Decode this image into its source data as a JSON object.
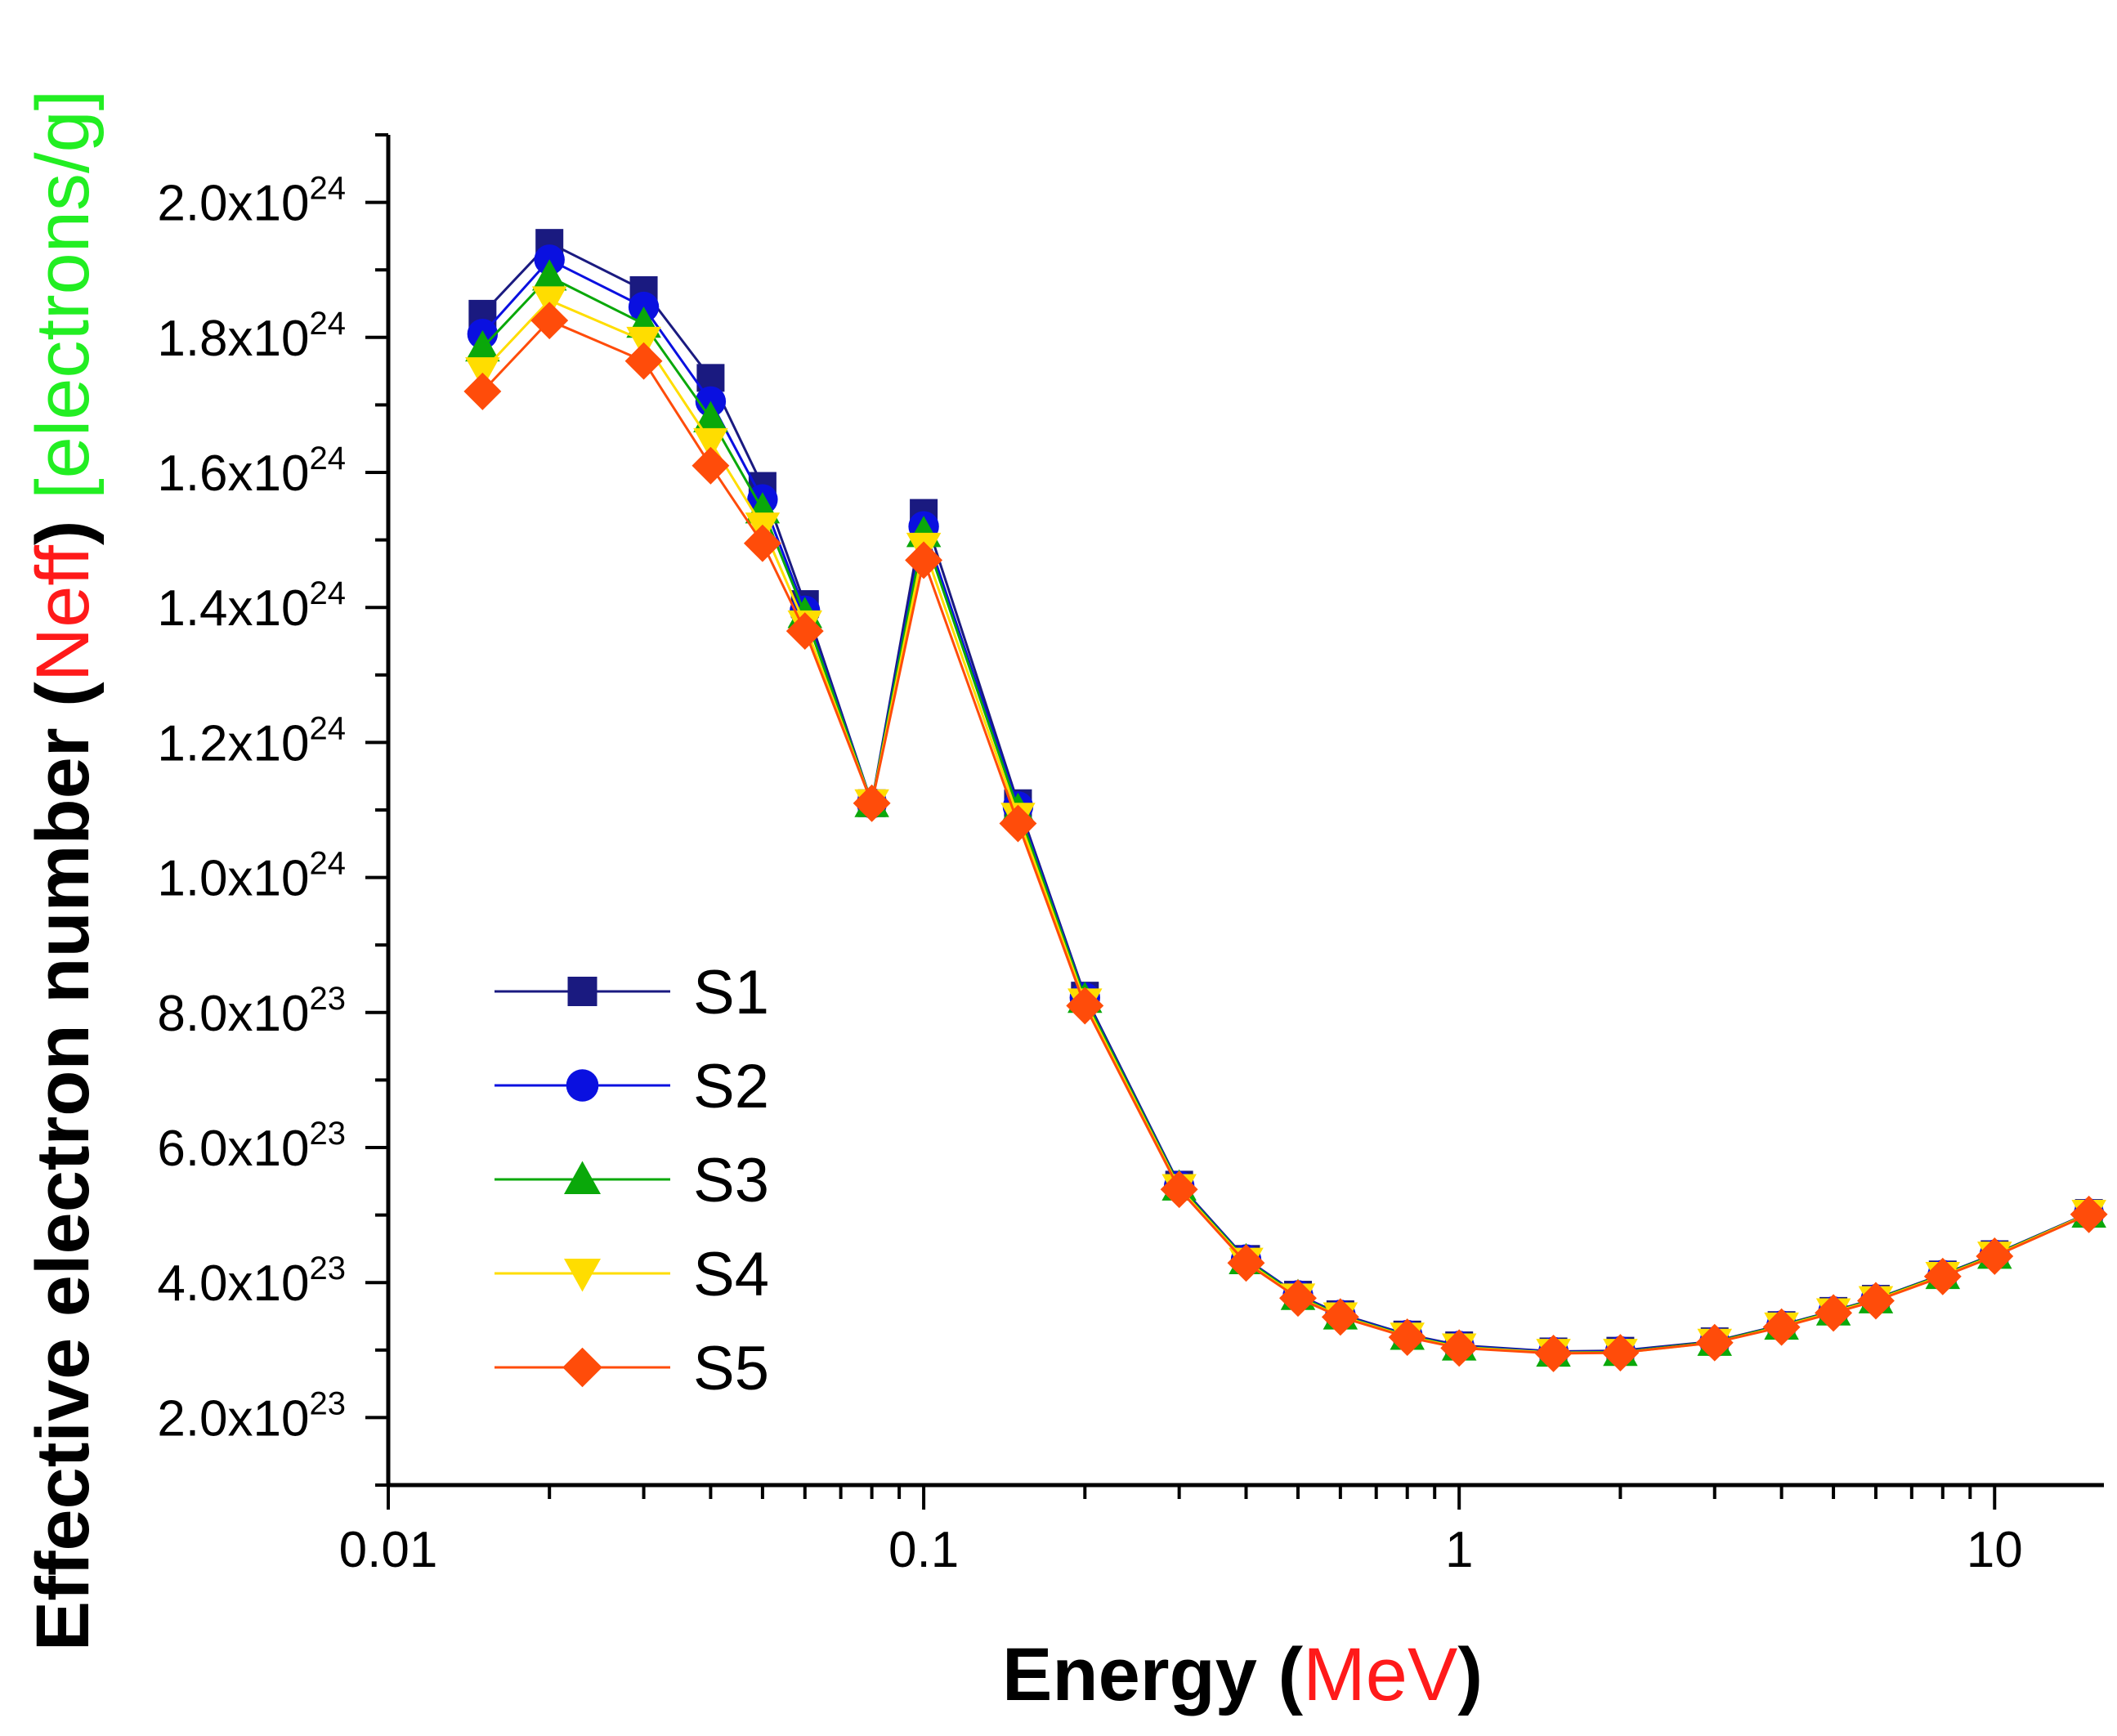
{
  "chart_data": {
    "type": "line",
    "xscale": "log",
    "xlim": [
      0.01,
      16
    ],
    "ylim": [
      1e+23,
      2.1e+24
    ],
    "x_ticks": [
      {
        "value": 0.01,
        "label": "0.01"
      },
      {
        "value": 0.1,
        "label": "0.1"
      },
      {
        "value": 1,
        "label": "1"
      },
      {
        "value": 10,
        "label": "10"
      }
    ],
    "y_ticks": [
      {
        "value": 2e+23,
        "mantissa": "2.0x10",
        "exp": "23"
      },
      {
        "value": 4e+23,
        "mantissa": "4.0x10",
        "exp": "23"
      },
      {
        "value": 6e+23,
        "mantissa": "6.0x10",
        "exp": "23"
      },
      {
        "value": 8e+23,
        "mantissa": "8.0x10",
        "exp": "23"
      },
      {
        "value": 1e+24,
        "mantissa": "1.0x10",
        "exp": "24"
      },
      {
        "value": 1.2e+24,
        "mantissa": "1.2x10",
        "exp": "24"
      },
      {
        "value": 1.4e+24,
        "mantissa": "1.4x10",
        "exp": "24"
      },
      {
        "value": 1.6e+24,
        "mantissa": "1.6x10",
        "exp": "24"
      },
      {
        "value": 1.8e+24,
        "mantissa": "1.8x10",
        "exp": "24"
      },
      {
        "value": 2e+24,
        "mantissa": "2.0x10",
        "exp": "24"
      }
    ],
    "xlabel": {
      "main": "Energy",
      "open": "(",
      "unit": "MeV",
      "close": ")"
    },
    "ylabel": {
      "main": "Effective electron number",
      "open": "(",
      "sym": "Neff",
      "close": ")",
      "unit": "[electrons/g]"
    },
    "legend_position": "center-left",
    "x": [
      0.015,
      0.02,
      0.03,
      0.04,
      0.05,
      0.06,
      0.08,
      0.1,
      0.15,
      0.2,
      0.3,
      0.4,
      0.5,
      0.6,
      0.8,
      1,
      1.5,
      2,
      3,
      4,
      5,
      6,
      8,
      10,
      15
    ],
    "series": [
      {
        "name": "S1",
        "color": "#1a1a80",
        "marker": "square",
        "values": [
          1.835e+24,
          1.94e+24,
          1.87e+24,
          1.74e+24,
          1.58e+24,
          1.405e+24,
          1.11e+24,
          1.54e+24,
          1.11e+24,
          8.25e+23,
          5.45e+23,
          4.35e+23,
          3.82e+23,
          3.53e+23,
          3.23e+23,
          3.07e+23,
          2.98e+23,
          2.99e+23,
          3.13e+23,
          3.37e+23,
          3.58e+23,
          3.76e+23,
          4.12e+23,
          4.42e+23,
          5.03e+23
        ]
      },
      {
        "name": "S2",
        "color": "#0a10e0",
        "marker": "circle",
        "values": [
          1.805e+24,
          1.915e+24,
          1.845e+24,
          1.705e+24,
          1.56e+24,
          1.395e+24,
          1.11e+24,
          1.52e+24,
          1.105e+24,
          8.22e+23,
          5.43e+23,
          4.34e+23,
          3.81e+23,
          3.52e+23,
          3.22e+23,
          3.06e+23,
          2.97e+23,
          2.98e+23,
          3.12e+23,
          3.36e+23,
          3.57e+23,
          3.75e+23,
          4.11e+23,
          4.41e+23,
          5.02e+23
        ]
      },
      {
        "name": "S3",
        "color": "#0aa80a",
        "marker": "triangle-up",
        "values": [
          1.785e+24,
          1.89e+24,
          1.82e+24,
          1.68e+24,
          1.545e+24,
          1.39e+24,
          1.11e+24,
          1.51e+24,
          1.1e+24,
          8.2e+23,
          5.42e+23,
          4.33e+23,
          3.8e+23,
          3.51e+23,
          3.21e+23,
          3.05e+23,
          2.96e+23,
          2.97e+23,
          3.12e+23,
          3.36e+23,
          3.57e+23,
          3.75e+23,
          4.11e+23,
          4.41e+23,
          5.02e+23
        ]
      },
      {
        "name": "S4",
        "color": "#ffdd00",
        "marker": "triangle-down",
        "values": [
          1.75e+24,
          1.855e+24,
          1.795e+24,
          1.645e+24,
          1.52e+24,
          1.375e+24,
          1.11e+24,
          1.49e+24,
          1.09e+24,
          8.15e+23,
          5.4e+23,
          4.31e+23,
          3.78e+23,
          3.5e+23,
          3.2e+23,
          3.04e+23,
          2.96e+23,
          2.96e+23,
          3.11e+23,
          3.35e+23,
          3.56e+23,
          3.74e+23,
          4.1e+23,
          4.4e+23,
          5.02e+23
        ]
      },
      {
        "name": "S5",
        "color": "#ff4c0a",
        "marker": "diamond",
        "values": [
          1.72e+24,
          1.825e+24,
          1.765e+24,
          1.61e+24,
          1.495e+24,
          1.365e+24,
          1.11e+24,
          1.47e+24,
          1.08e+24,
          8.1e+23,
          5.38e+23,
          4.29e+23,
          3.77e+23,
          3.49e+23,
          3.19e+23,
          3.03e+23,
          2.95e+23,
          2.96e+23,
          3.11e+23,
          3.34e+23,
          3.55e+23,
          3.73e+23,
          4.09e+23,
          4.39e+23,
          5.01e+23
        ]
      }
    ]
  }
}
